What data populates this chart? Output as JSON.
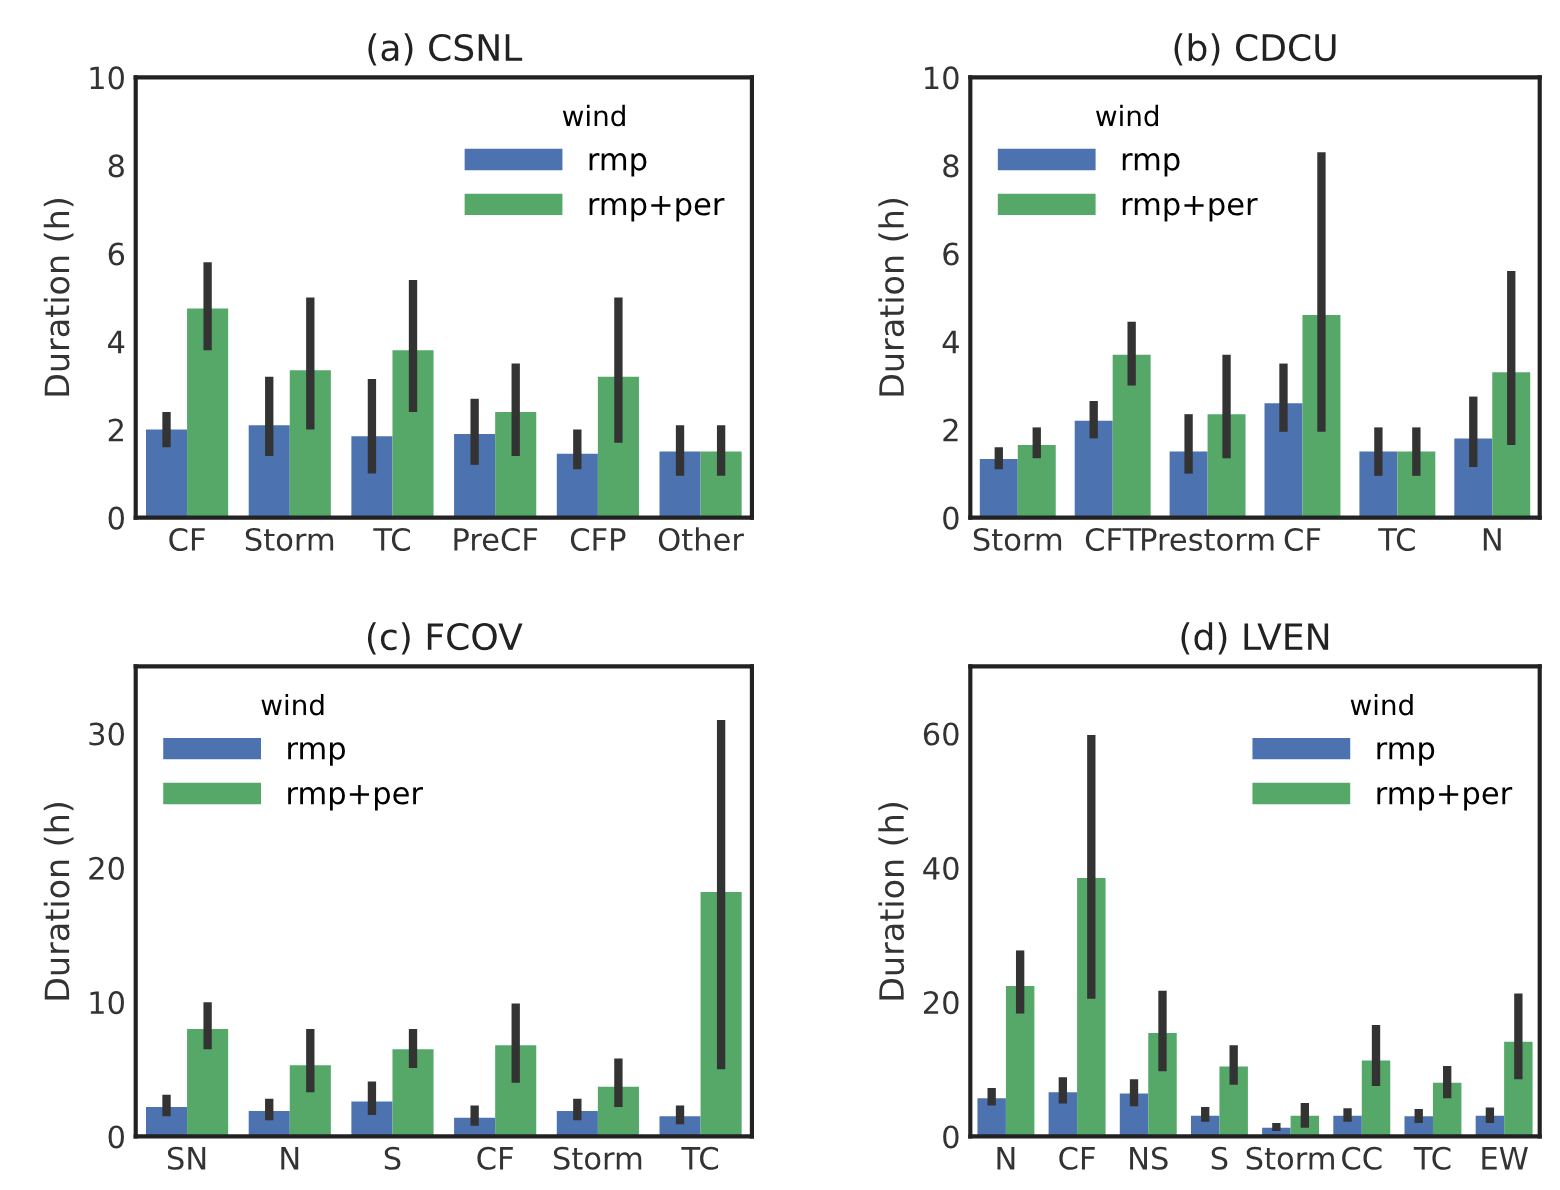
{
  "chart_data": [
    {
      "type": "bar",
      "title": "(a) CSNL",
      "ylabel": "Duration (h)",
      "legend_title": "wind",
      "legend": "top right",
      "grid": false,
      "ylim": [
        0,
        10
      ],
      "yticks": [
        0,
        2,
        4,
        6,
        8,
        10
      ],
      "categories": [
        "CF",
        "Storm",
        "TC",
        "PreCF",
        "CFP",
        "Other"
      ],
      "series": [
        {
          "name": "rmp",
          "color": "#4c72b0",
          "values": [
            2.0,
            2.1,
            1.85,
            1.9,
            1.45,
            1.5
          ],
          "errors": [
            [
              1.6,
              2.4
            ],
            [
              1.4,
              3.2
            ],
            [
              1.0,
              3.15
            ],
            [
              1.2,
              2.7
            ],
            [
              1.1,
              2.0
            ],
            [
              0.95,
              2.1
            ]
          ]
        },
        {
          "name": "rmp+per",
          "color": "#55a868",
          "values": [
            4.75,
            3.35,
            3.8,
            2.4,
            3.2,
            1.5
          ],
          "errors": [
            [
              3.8,
              5.8
            ],
            [
              2.0,
              5.0
            ],
            [
              2.4,
              5.4
            ],
            [
              1.4,
              3.5
            ],
            [
              1.7,
              5.0
            ],
            [
              0.95,
              2.1
            ]
          ]
        }
      ]
    },
    {
      "type": "bar",
      "title": "(b) CDCU",
      "ylabel": "Duration (h)",
      "legend_title": "wind",
      "legend": "top left",
      "grid": false,
      "ylim": [
        0,
        10
      ],
      "yticks": [
        0,
        2,
        4,
        6,
        8,
        10
      ],
      "categories": [
        "Storm",
        "CFT",
        "Prestorm",
        "CF",
        "TC",
        "N"
      ],
      "series": [
        {
          "name": "rmp",
          "color": "#4c72b0",
          "values": [
            1.33,
            2.2,
            1.5,
            2.6,
            1.5,
            1.8
          ],
          "errors": [
            [
              1.1,
              1.6
            ],
            [
              1.8,
              2.65
            ],
            [
              1.0,
              2.35
            ],
            [
              1.95,
              3.5
            ],
            [
              0.95,
              2.05
            ],
            [
              1.15,
              2.75
            ]
          ]
        },
        {
          "name": "rmp+per",
          "color": "#55a868",
          "values": [
            1.65,
            3.7,
            2.35,
            4.6,
            1.5,
            3.3
          ],
          "errors": [
            [
              1.35,
              2.05
            ],
            [
              3.0,
              4.45
            ],
            [
              1.35,
              3.7
            ],
            [
              1.95,
              8.3
            ],
            [
              0.95,
              2.05
            ],
            [
              1.65,
              5.6
            ]
          ]
        }
      ]
    },
    {
      "type": "bar",
      "title": "(c) FCOV",
      "ylabel": "Duration (h)",
      "legend_title": "wind",
      "legend": "top left",
      "grid": false,
      "ylim": [
        0,
        35
      ],
      "yticks": [
        0,
        10,
        20,
        30
      ],
      "categories": [
        "SN",
        "N",
        "S",
        "CF",
        "Storm",
        "TC"
      ],
      "series": [
        {
          "name": "rmp",
          "color": "#4c72b0",
          "values": [
            2.2,
            1.9,
            2.6,
            1.4,
            1.9,
            1.5
          ],
          "errors": [
            [
              1.5,
              3.1
            ],
            [
              1.2,
              2.8
            ],
            [
              1.6,
              4.1
            ],
            [
              0.8,
              2.3
            ],
            [
              1.2,
              2.8
            ],
            [
              0.9,
              2.3
            ]
          ]
        },
        {
          "name": "rmp+per",
          "color": "#55a868",
          "values": [
            8.0,
            5.3,
            6.5,
            6.8,
            3.7,
            18.2
          ],
          "errors": [
            [
              6.5,
              10.0
            ],
            [
              3.3,
              8.0
            ],
            [
              5.1,
              8.0
            ],
            [
              4.0,
              9.9
            ],
            [
              2.2,
              5.8
            ],
            [
              5.0,
              31.0
            ]
          ]
        }
      ]
    },
    {
      "type": "bar",
      "title": "(d) LVEN",
      "ylabel": "Duration (h)",
      "legend_title": "wind",
      "legend": "top right",
      "grid": false,
      "ylim": [
        0,
        70
      ],
      "yticks": [
        0,
        20,
        40,
        60
      ],
      "categories": [
        "N",
        "CF",
        "NS",
        "S",
        "Storm",
        "CC",
        "TC",
        "EW"
      ],
      "series": [
        {
          "name": "rmp",
          "color": "#4c72b0",
          "values": [
            5.7,
            6.6,
            6.4,
            3.1,
            1.3,
            3.1,
            3.0,
            3.1
          ],
          "errors": [
            [
              4.6,
              7.2
            ],
            [
              4.9,
              8.8
            ],
            [
              4.5,
              8.5
            ],
            [
              2.2,
              4.4
            ],
            [
              0.8,
              2.0
            ],
            [
              2.2,
              4.2
            ],
            [
              2.0,
              4.1
            ],
            [
              2.0,
              4.3
            ]
          ]
        },
        {
          "name": "rmp+per",
          "color": "#55a868",
          "values": [
            22.4,
            38.5,
            15.4,
            10.4,
            3.1,
            11.3,
            8.0,
            14.1
          ],
          "errors": [
            [
              18.3,
              27.7
            ],
            [
              20.5,
              59.8
            ],
            [
              9.7,
              21.7
            ],
            [
              7.7,
              13.6
            ],
            [
              1.3,
              5.0
            ],
            [
              7.5,
              16.6
            ],
            [
              5.7,
              10.5
            ],
            [
              8.5,
              21.3
            ]
          ]
        }
      ]
    }
  ]
}
